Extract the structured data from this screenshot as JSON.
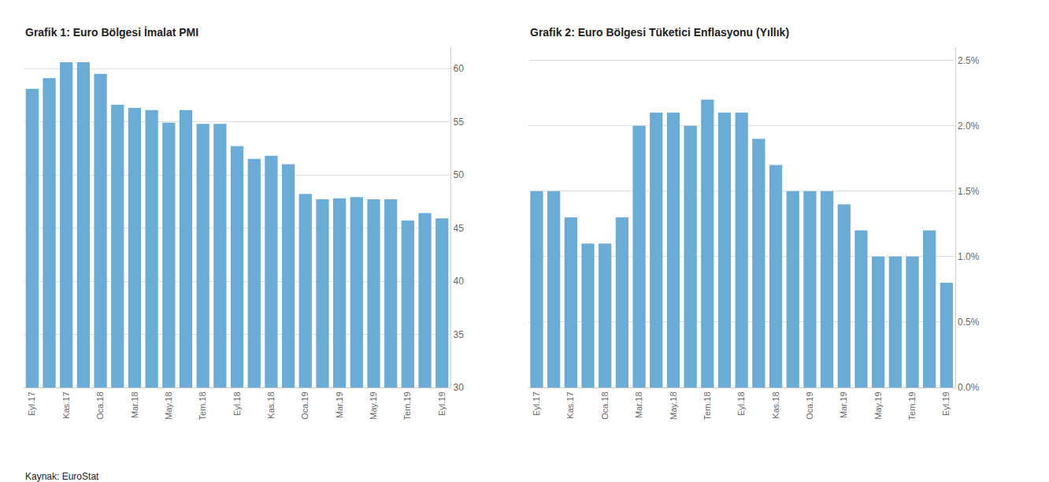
{
  "chart_data": [
    {
      "type": "bar",
      "title": "Grafik 1: Euro Bölgesi İmalat PMI",
      "categories": [
        "Eyl.17",
        null,
        "Kas.17",
        null,
        "Oca.18",
        null,
        "Mar.18",
        null,
        "May.18",
        null,
        "Tem.18",
        null,
        "Eyl.18",
        null,
        "Kas.18",
        null,
        "Oca.19",
        null,
        "Mar.19",
        null,
        "May.19",
        null,
        "Tem.19",
        null,
        "Eyl.19"
      ],
      "values": [
        58.1,
        59.1,
        60.6,
        60.6,
        59.5,
        56.6,
        56.3,
        56.1,
        54.9,
        56.1,
        54.8,
        54.8,
        52.7,
        51.5,
        51.8,
        51.0,
        48.2,
        47.7,
        47.8,
        47.9,
        47.7,
        47.7,
        45.7,
        46.4,
        45.9
      ],
      "color": "#6aacd5",
      "ylim": [
        30,
        62
      ],
      "yticks": [
        30,
        35,
        40,
        45,
        50,
        55,
        60
      ],
      "grid": true,
      "annotations": [
        "Kaynak: EuroStat"
      ]
    },
    {
      "type": "bar",
      "title": "Grafik 2: Euro Bölgesi Tüketici Enflasyonu (Yıllık)",
      "categories": [
        "Eyl.17",
        null,
        "Kas.17",
        null,
        "Oca.18",
        null,
        "Mar.18",
        null,
        "May.18",
        null,
        "Tem.18",
        null,
        "Eyl.18",
        null,
        "Kas.18",
        null,
        "Oca.19",
        null,
        "Mar.19",
        null,
        "May.19",
        null,
        "Tem.19",
        null,
        "Eyl.19"
      ],
      "values": [
        0.015,
        0.015,
        0.013,
        0.011,
        0.011,
        0.013,
        0.02,
        0.021,
        0.021,
        0.02,
        0.022,
        0.021,
        0.021,
        0.019,
        0.017,
        0.015,
        0.015,
        0.015,
        0.014,
        0.012,
        0.01,
        0.01,
        0.01,
        0.012,
        0.008
      ],
      "color": "#6aacd5",
      "ylim": [
        0.0,
        0.026
      ],
      "yticks": [
        {
          "value": 0.0,
          "label": "0.0%"
        },
        {
          "value": 0.005,
          "label": "0.5%"
        },
        {
          "value": 0.01,
          "label": "1.0%"
        },
        {
          "value": 0.015,
          "label": "1.5%"
        },
        {
          "value": 0.02,
          "label": "2.0%"
        },
        {
          "value": 0.025,
          "label": "2.5%"
        }
      ],
      "grid": true
    }
  ]
}
